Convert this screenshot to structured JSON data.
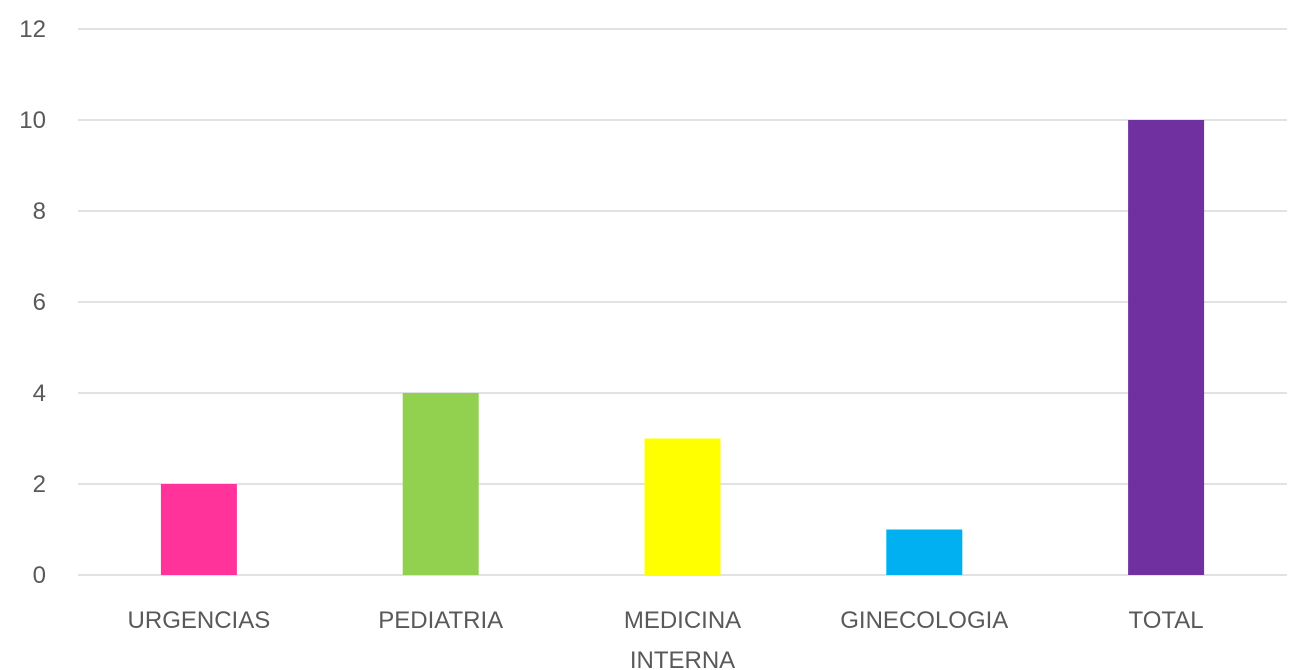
{
  "chart_data": {
    "type": "bar",
    "categories": [
      [
        "URGENCIAS"
      ],
      [
        "PEDIATRIA"
      ],
      [
        "MEDICINA",
        "INTERNA"
      ],
      [
        "GINECOLOGIA"
      ],
      [
        "TOTAL"
      ]
    ],
    "values": [
      2,
      4,
      3,
      1,
      10
    ],
    "colors": [
      "#ff3399",
      "#92d050",
      "#ffff00",
      "#00b0f0",
      "#7030a0"
    ],
    "ylim": [
      0,
      12
    ],
    "yticks": [
      "0",
      "2",
      "4",
      "6",
      "8",
      "10",
      "12"
    ],
    "grid": true,
    "title": "",
    "xlabel": "",
    "ylabel": ""
  }
}
